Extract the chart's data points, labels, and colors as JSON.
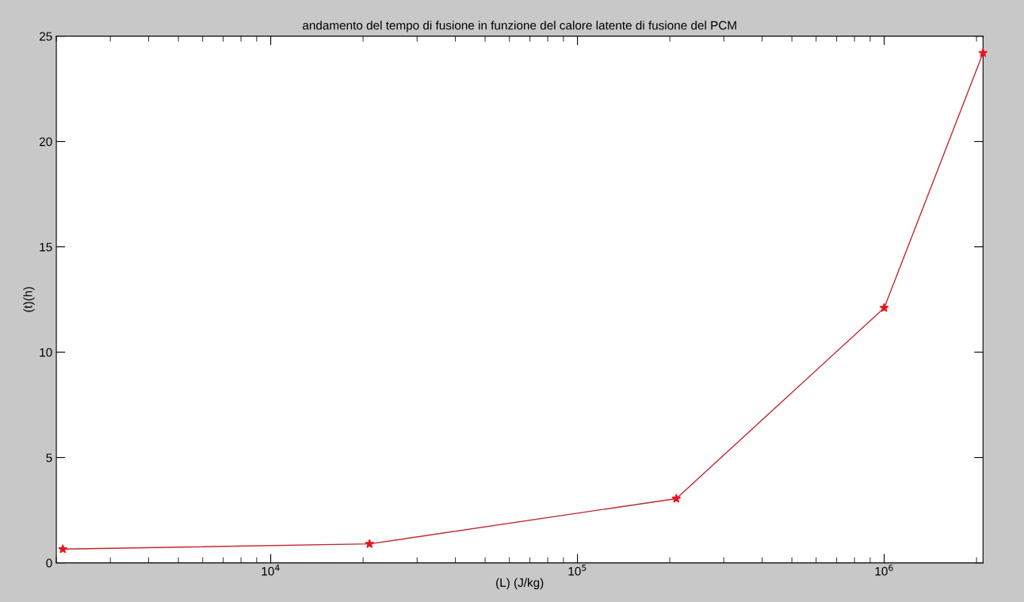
{
  "chart_data": {
    "type": "line",
    "title": "andamento del tempo di fusione in funzione del calore latente di fusione del PCM",
    "xlabel": "(L) (J/kg)",
    "ylabel": "(t)(h)",
    "x": [
      2100,
      21000,
      210000,
      1000000,
      2100000
    ],
    "series": [
      {
        "color": "#c0282d",
        "values": [
          0.65,
          0.9,
          3.05,
          12.1,
          24.2
        ]
      }
    ],
    "log": "x",
    "xlim": [
      2000,
      2100000
    ],
    "xticks": [
      {
        "value": 10000,
        "label": "10$^{4}$"
      },
      {
        "value": 100000,
        "label": "10$^{5}$"
      },
      {
        "value": 1000000,
        "label": "10$^{6}$"
      }
    ],
    "ylim": [
      0,
      25
    ],
    "yticks": [
      0,
      5,
      10,
      15,
      20,
      25
    ],
    "marker": "star",
    "line_style": "solid",
    "grid": false,
    "legend": false
  }
}
